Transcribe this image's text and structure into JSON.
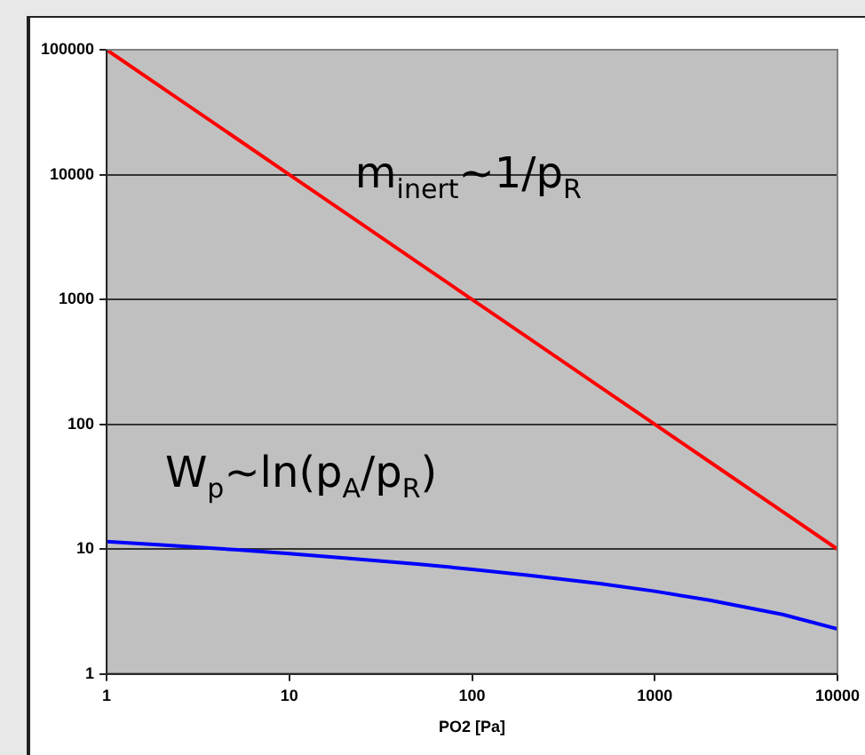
{
  "chart_data": {
    "type": "line",
    "xlabel": "PO2 [Pa]",
    "x": [
      1,
      2,
      5,
      10,
      20,
      50,
      100,
      200,
      500,
      1000,
      2000,
      5000,
      10000
    ],
    "series": [
      {
        "color": "#ff0000",
        "values": [
          100000,
          50000,
          20000,
          10000,
          5000,
          2000,
          1000,
          500,
          200,
          100,
          50,
          20,
          10
        ]
      },
      {
        "color": "#0000ff",
        "values": [
          11.5,
          10.8,
          9.9,
          9.2,
          8.5,
          7.6,
          6.9,
          6.2,
          5.3,
          4.6,
          3.9,
          3.0,
          2.3
        ]
      }
    ],
    "log": "xy",
    "xlim": [
      1,
      10000
    ],
    "xticks": [
      1,
      10,
      100,
      1000,
      10000
    ],
    "ylim": [
      1,
      100000
    ],
    "yticks": [
      1,
      10,
      100,
      1000,
      10000,
      100000
    ],
    "grid": "y",
    "legend": false,
    "marker": "none",
    "line_style": "solid",
    "annotations": [
      "m$_{inert}$~1/p$_{R}$",
      "W$_{p}$~ln(p$_{A}$/p$_{R}$)"
    ]
  }
}
